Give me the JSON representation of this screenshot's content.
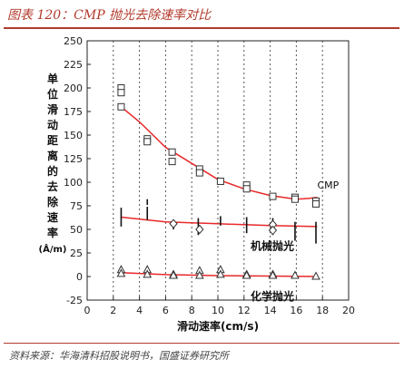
{
  "header": {
    "title": "图表 120：CMP 抛光去除速率对比"
  },
  "footer": {
    "source": "资料来源：华海清科招股说明书，国盛证券研究所"
  },
  "colors": {
    "accent": "#b23a2c",
    "fit_line": "#e8282a",
    "marker": "#333333",
    "grid": "#555555"
  },
  "chart_data": {
    "type": "scatter",
    "title": "",
    "xlabel": "滑动速率(cm/s)",
    "ylabel_chars": [
      "单",
      "位",
      "滑",
      "动",
      "距",
      "离",
      "的",
      "去",
      "除",
      "速",
      "率",
      "(Å/m)"
    ],
    "xlim": [
      0,
      20
    ],
    "ylim": [
      -25,
      250
    ],
    "xticks": [
      0,
      2,
      4,
      6,
      8,
      10,
      12,
      14,
      16,
      18,
      20
    ],
    "yticks": [
      -25,
      0,
      25,
      50,
      75,
      100,
      125,
      150,
      175,
      200,
      225,
      250
    ],
    "grid": "dotted vertical lines at x = 2, 4, 6, 8, 10, 12, 14, 16, 18",
    "series": [
      {
        "name": "CMP",
        "marker": "square",
        "points": [
          [
            2.6,
            200
          ],
          [
            2.6,
            195
          ],
          [
            2.6,
            180
          ],
          [
            4.6,
            146
          ],
          [
            4.6,
            143
          ],
          [
            6.5,
            132
          ],
          [
            6.5,
            122
          ],
          [
            8.6,
            114
          ],
          [
            8.6,
            110
          ],
          [
            10.2,
            101
          ],
          [
            12.2,
            97
          ],
          [
            12.2,
            93
          ],
          [
            14.2,
            85
          ],
          [
            15.9,
            84
          ],
          [
            15.9,
            82
          ],
          [
            17.5,
            80
          ],
          [
            17.5,
            77
          ]
        ],
        "fit": [
          [
            2.6,
            180
          ],
          [
            4,
            164
          ],
          [
            6,
            137
          ],
          [
            8,
            120
          ],
          [
            10,
            103
          ],
          [
            12,
            93
          ],
          [
            14,
            86
          ],
          [
            16,
            82
          ],
          [
            17,
            83
          ],
          [
            17.6,
            84
          ]
        ]
      },
      {
        "name": "机械抛光",
        "marker": "diamond",
        "points": [
          [
            6.6,
            56
          ],
          [
            8.6,
            50
          ],
          [
            14.2,
            55
          ],
          [
            14.2,
            49
          ]
        ],
        "error_bars": [
          [
            2.6,
            53,
            73
          ],
          [
            4.6,
            60,
            74
          ],
          [
            4.6,
            76,
            82
          ],
          [
            6.6,
            50,
            58
          ],
          [
            8.5,
            44,
            62
          ],
          [
            10.2,
            54,
            64
          ],
          [
            12.2,
            46,
            63
          ],
          [
            14.2,
            44,
            62
          ],
          [
            15.9,
            38,
            58
          ],
          [
            17.5,
            35,
            58
          ]
        ],
        "fit": [
          [
            2.6,
            63
          ],
          [
            6,
            58
          ],
          [
            10,
            56
          ],
          [
            14,
            54
          ],
          [
            17.6,
            53
          ]
        ]
      },
      {
        "name": "化学抛光",
        "marker": "triangle",
        "points": [
          [
            2.6,
            7
          ],
          [
            2.6,
            3
          ],
          [
            4.6,
            7
          ],
          [
            4.6,
            2
          ],
          [
            6.6,
            2
          ],
          [
            6.6,
            1
          ],
          [
            8.6,
            6
          ],
          [
            8.6,
            1
          ],
          [
            10.2,
            7
          ],
          [
            10.2,
            2
          ],
          [
            12.2,
            2
          ],
          [
            12.2,
            1
          ],
          [
            14.2,
            2
          ],
          [
            14.2,
            1
          ],
          [
            15.9,
            1
          ],
          [
            17.5,
            0
          ]
        ],
        "fit": [
          [
            2.6,
            4
          ],
          [
            6,
            2
          ],
          [
            10,
            1
          ],
          [
            14,
            0.5
          ],
          [
            17.6,
            0
          ]
        ]
      }
    ],
    "annotations": [
      {
        "text": "CMP",
        "x": 17.6,
        "y": 97,
        "anchor": "start"
      },
      {
        "text": "机械抛光",
        "x": 12.5,
        "y": 32,
        "anchor": "start"
      },
      {
        "text": "化学抛光",
        "x": 12.5,
        "y": -21,
        "anchor": "start"
      }
    ]
  }
}
